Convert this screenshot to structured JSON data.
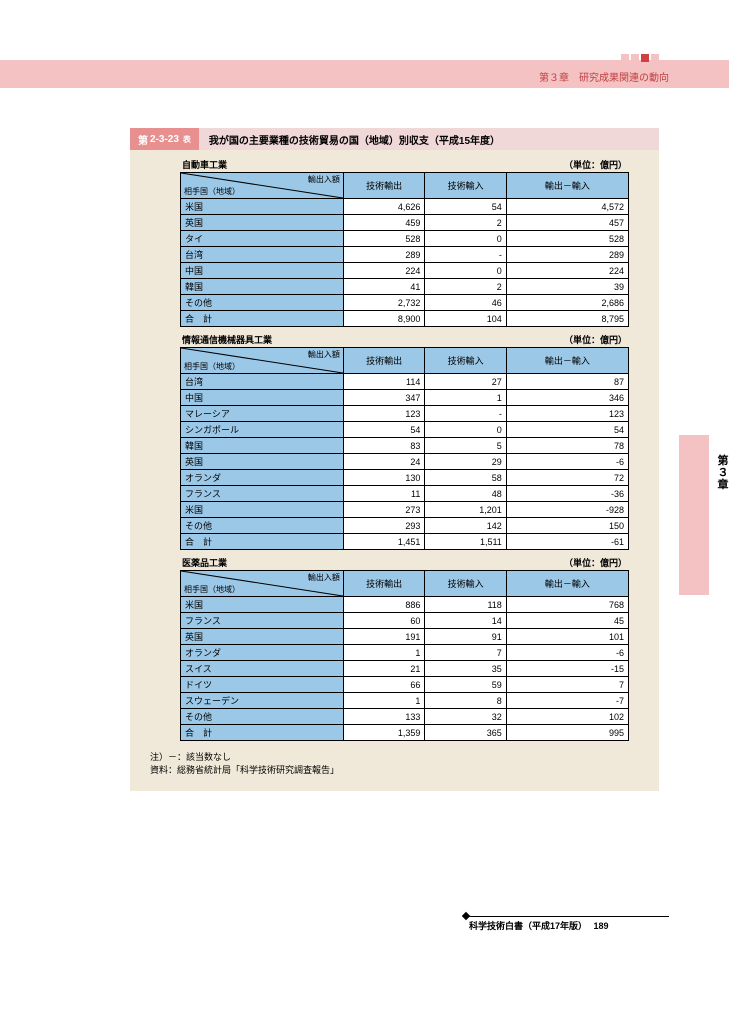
{
  "header": {
    "chapter_label": "第３章　研究成果関連の動向",
    "square_colors": [
      "#f4c2c2",
      "#f4c2c2",
      "#d04040",
      "#f4c2c2"
    ]
  },
  "side_tab": {
    "label": "第３章"
  },
  "table_number": {
    "prefix": "第",
    "num": "2-3-23",
    "suffix": "表"
  },
  "table_title": "我が国の主要業種の技術貿易の国（地域）別収支（平成15年度）",
  "unit_label": "（単位：億円）",
  "col_headers": {
    "diag_top": "輸出入額",
    "diag_bottom": "相手国（地域）",
    "c1": "技術輸出",
    "c2": "技術輸入",
    "c3": "輸出－輸入"
  },
  "sections": [
    {
      "title": "自動車工業",
      "rows": [
        {
          "country": "米国",
          "v": [
            "4,626",
            "54",
            "4,572"
          ]
        },
        {
          "country": "英国",
          "v": [
            "459",
            "2",
            "457"
          ]
        },
        {
          "country": "タイ",
          "v": [
            "528",
            "0",
            "528"
          ]
        },
        {
          "country": "台湾",
          "v": [
            "289",
            "-",
            "289"
          ]
        },
        {
          "country": "中国",
          "v": [
            "224",
            "0",
            "224"
          ]
        },
        {
          "country": "韓国",
          "v": [
            "41",
            "2",
            "39"
          ]
        },
        {
          "country": "その他",
          "v": [
            "2,732",
            "46",
            "2,686"
          ]
        },
        {
          "country": "合　計",
          "v": [
            "8,900",
            "104",
            "8,795"
          ]
        }
      ]
    },
    {
      "title": "情報通信機械器具工業",
      "rows": [
        {
          "country": "台湾",
          "v": [
            "114",
            "27",
            "87"
          ]
        },
        {
          "country": "中国",
          "v": [
            "347",
            "1",
            "346"
          ]
        },
        {
          "country": "マレーシア",
          "v": [
            "123",
            "-",
            "123"
          ]
        },
        {
          "country": "シンガポール",
          "v": [
            "54",
            "0",
            "54"
          ]
        },
        {
          "country": "韓国",
          "v": [
            "83",
            "5",
            "78"
          ]
        },
        {
          "country": "英国",
          "v": [
            "24",
            "29",
            "-6"
          ]
        },
        {
          "country": "オランダ",
          "v": [
            "130",
            "58",
            "72"
          ]
        },
        {
          "country": "フランス",
          "v": [
            "11",
            "48",
            "-36"
          ]
        },
        {
          "country": "米国",
          "v": [
            "273",
            "1,201",
            "-928"
          ]
        },
        {
          "country": "その他",
          "v": [
            "293",
            "142",
            "150"
          ]
        },
        {
          "country": "合　計",
          "v": [
            "1,451",
            "1,511",
            "-61"
          ]
        }
      ]
    },
    {
      "title": "医薬品工業",
      "rows": [
        {
          "country": "米国",
          "v": [
            "886",
            "118",
            "768"
          ]
        },
        {
          "country": "フランス",
          "v": [
            "60",
            "14",
            "45"
          ]
        },
        {
          "country": "英国",
          "v": [
            "191",
            "91",
            "101"
          ]
        },
        {
          "country": "オランダ",
          "v": [
            "1",
            "7",
            "-6"
          ]
        },
        {
          "country": "スイス",
          "v": [
            "21",
            "35",
            "-15"
          ]
        },
        {
          "country": "ドイツ",
          "v": [
            "66",
            "59",
            "7"
          ]
        },
        {
          "country": "スウェーデン",
          "v": [
            "1",
            "8",
            "-7"
          ]
        },
        {
          "country": "その他",
          "v": [
            "133",
            "32",
            "102"
          ]
        },
        {
          "country": "合　計",
          "v": [
            "1,359",
            "365",
            "995"
          ]
        }
      ]
    }
  ],
  "notes": [
    "注）－：該当数なし",
    "資料：総務省統計局「科学技術研究調査報告」"
  ],
  "footer": {
    "text": "科学技術白書（平成17年版）",
    "page": "189"
  }
}
